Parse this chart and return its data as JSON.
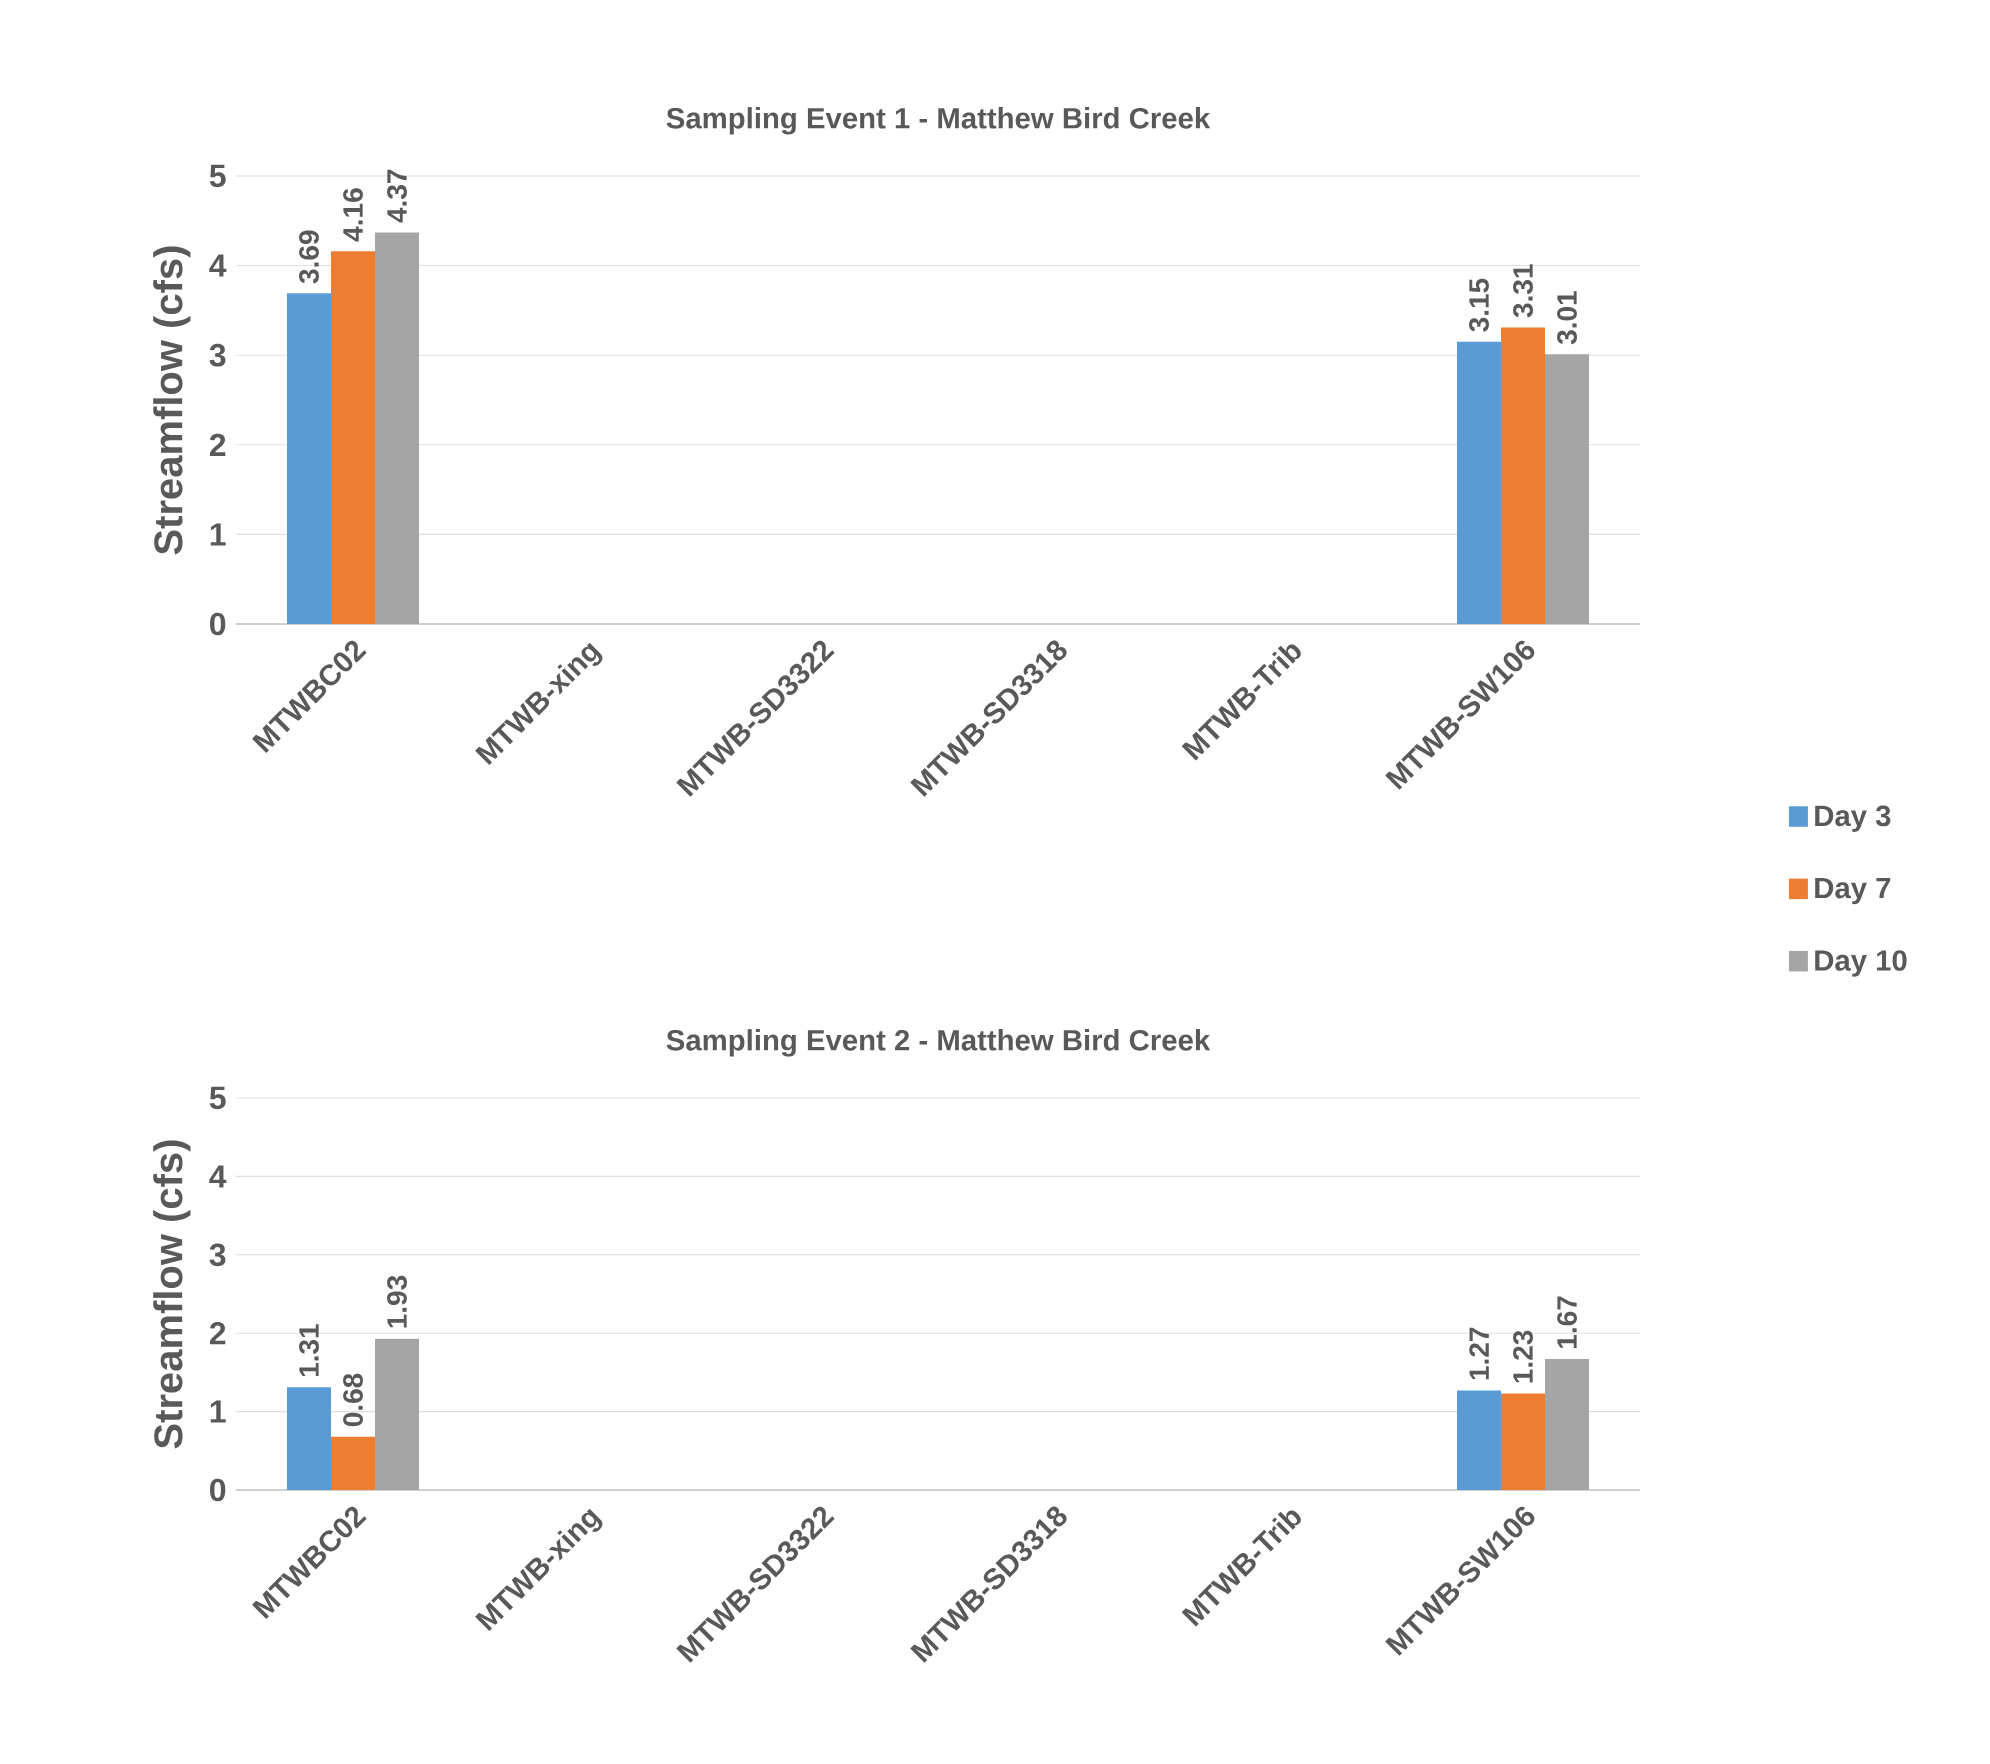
{
  "chart_data": [
    {
      "type": "bar",
      "title": "Sampling Event 1 - Matthew Bird Creek",
      "ylabel": "Streamflow (cfs)",
      "categories": [
        "MTWBC02",
        "MTWB-xing",
        "MTWB-SD3322",
        "MTWB-SD3318",
        "MTWB-Trib",
        "MTWB-SW106"
      ],
      "series": [
        {
          "name": "Day 3",
          "color": "#5b9bd5",
          "values": [
            3.69,
            null,
            null,
            null,
            null,
            3.15
          ]
        },
        {
          "name": "Day 7",
          "color": "#ed7d31",
          "values": [
            4.16,
            null,
            null,
            null,
            null,
            3.31
          ]
        },
        {
          "name": "Day 10",
          "color": "#a5a5a5",
          "values": [
            4.37,
            null,
            null,
            null,
            null,
            3.01
          ]
        }
      ],
      "ylim": [
        0,
        5
      ],
      "yticks": [
        0,
        1,
        2,
        3,
        4,
        5
      ],
      "grid": "y",
      "data_labels": true,
      "legend": "right"
    },
    {
      "type": "bar",
      "title": "Sampling Event 2 - Matthew Bird Creek",
      "ylabel": "Streamflow (cfs)",
      "categories": [
        "MTWBC02",
        "MTWB-xing",
        "MTWB-SD3322",
        "MTWB-SD3318",
        "MTWB-Trib",
        "MTWB-SW106"
      ],
      "series": [
        {
          "color": "#5b9bd5",
          "values": [
            1.31,
            null,
            null,
            null,
            null,
            1.27
          ]
        },
        {
          "color": "#ed7d31",
          "values": [
            0.68,
            null,
            null,
            null,
            null,
            1.23
          ]
        },
        {
          "color": "#a5a5a5",
          "values": [
            1.93,
            null,
            null,
            null,
            null,
            1.67
          ]
        }
      ],
      "ylim": [
        0,
        5
      ],
      "yticks": [
        0,
        1,
        2,
        3,
        4,
        5
      ],
      "grid": "y",
      "data_labels": true
    }
  ]
}
